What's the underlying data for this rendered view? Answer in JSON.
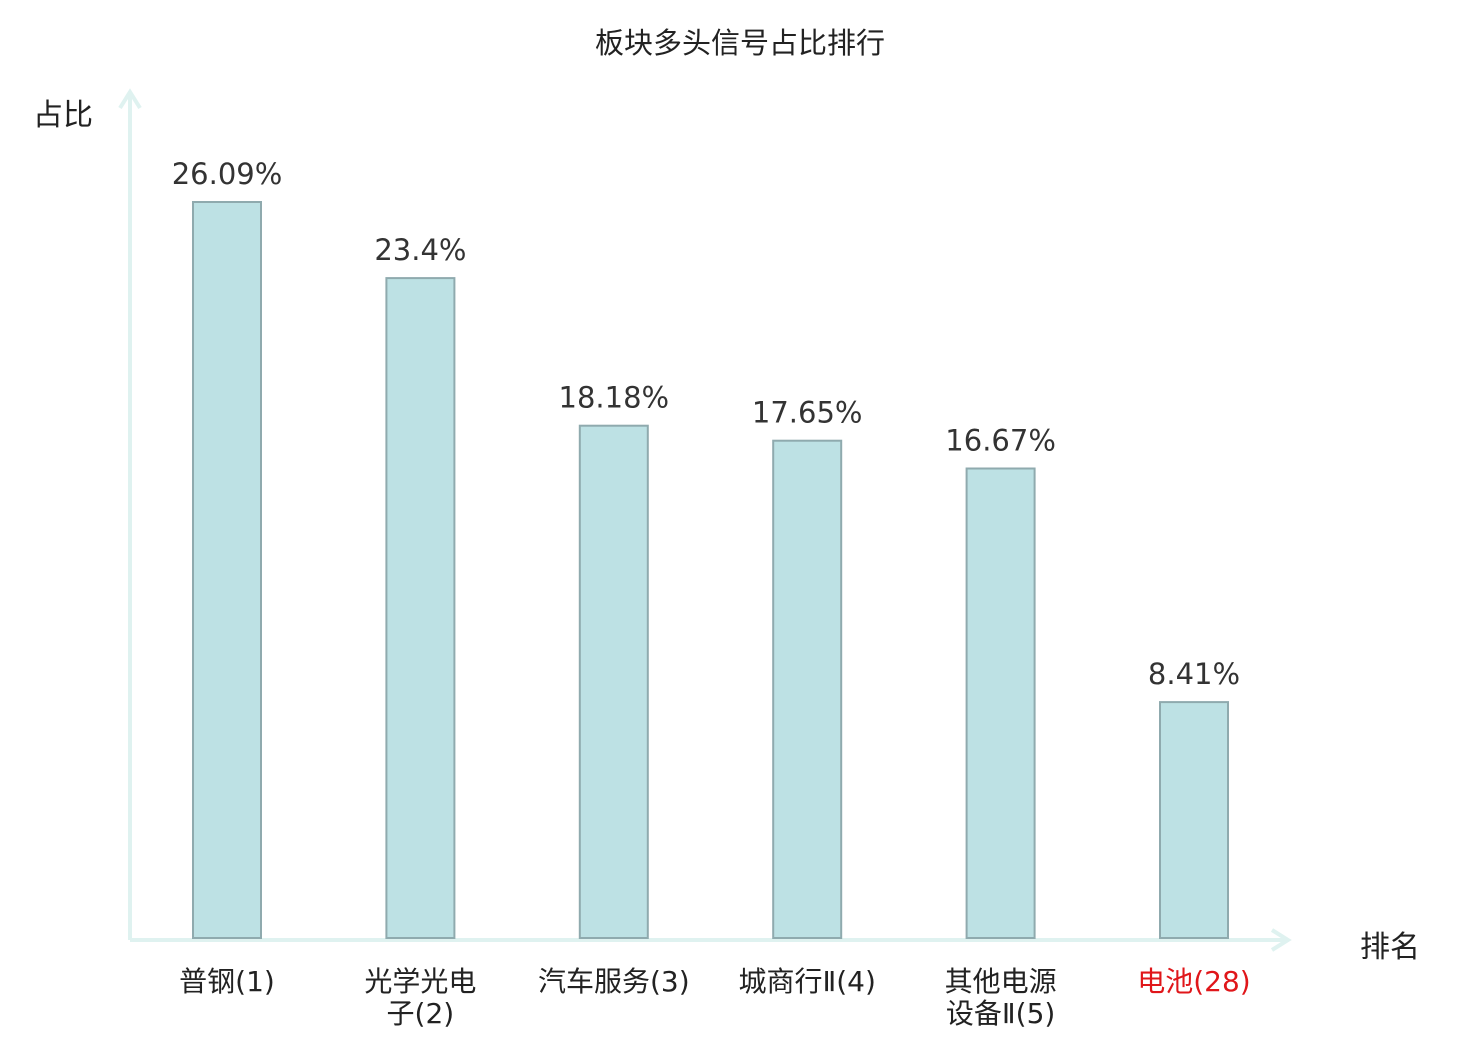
{
  "chart_data": {
    "type": "bar",
    "title": "板块多头信号占比排行",
    "ylabel": "占比",
    "xlabel": "排名",
    "categories": [
      "普钢(1)",
      "光学光电子(2)",
      "汽车服务(3)",
      "城商行Ⅱ(4)",
      "其他电源设备Ⅱ(5)",
      "电池(28)"
    ],
    "values": [
      26.09,
      23.4,
      18.18,
      17.65,
      16.67,
      8.41
    ],
    "value_labels": [
      "26.09%",
      "23.4%",
      "18.18%",
      "17.65%",
      "16.67%",
      "8.41%"
    ],
    "highlight_index": 5,
    "ylim": [
      0,
      30
    ],
    "grid": false,
    "legend": "none",
    "colors": {
      "bar_fill": "#bde1e4",
      "bar_stroke": "#8faaae",
      "axis": "#dff2f0",
      "highlight_label": "#e0161a",
      "text": "#222222"
    }
  }
}
